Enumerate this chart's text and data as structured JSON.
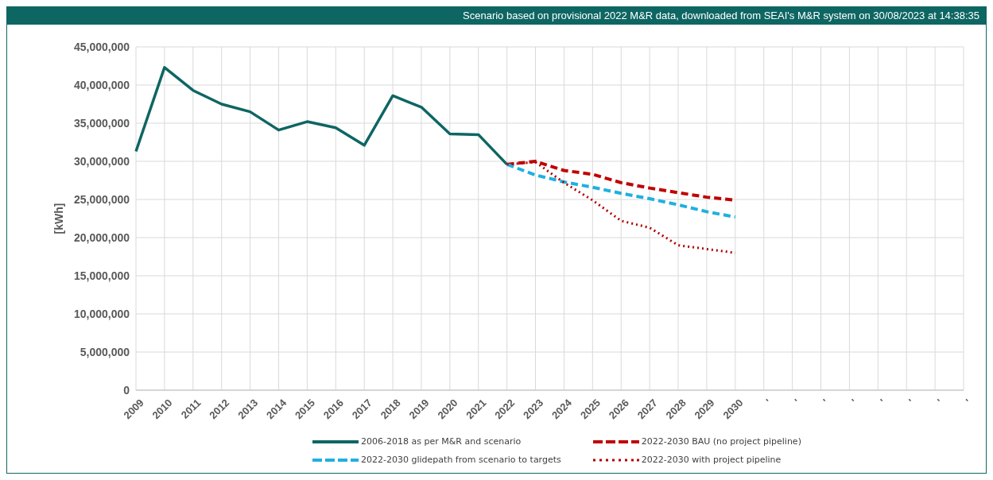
{
  "chart_data": {
    "type": "line",
    "title": "Scenario based on provisional 2022 M&R data, downloaded from SEAI's M&R system on 30/08/2023 at 14:38:35",
    "ylabel": "[kWh]",
    "categories": [
      "2009",
      "2010",
      "2011",
      "2012",
      "2013",
      "2014",
      "2015",
      "2016",
      "2017",
      "2018",
      "2019",
      "2020",
      "2021",
      "2022",
      "2023",
      "2024",
      "2025",
      "2026",
      "2027",
      "2028",
      "2029",
      "2030",
      "'",
      "'",
      "'",
      "'",
      "'",
      "'",
      "'",
      "'"
    ],
    "series": [
      {
        "name": "2006-2018 as per M&R and scenario",
        "color": "#0e6663",
        "line_style": "solid",
        "values": [
          31300000,
          42300000,
          39300000,
          37500000,
          36500000,
          34100000,
          35200000,
          34400000,
          32100000,
          38600000,
          37100000,
          33600000,
          33500000,
          29600000,
          null,
          null,
          null,
          null,
          null,
          null,
          null,
          null,
          null,
          null,
          null,
          null,
          null,
          null,
          null,
          null
        ]
      },
      {
        "name": "2022-2030 BAU (no project pipeline)",
        "color": "#c00000",
        "line_style": "dashed",
        "values": [
          null,
          null,
          null,
          null,
          null,
          null,
          null,
          null,
          null,
          null,
          null,
          null,
          null,
          29600000,
          30000000,
          28800000,
          28300000,
          27200000,
          26500000,
          25900000,
          25300000,
          24900000,
          null,
          null,
          null,
          null,
          null,
          null,
          null,
          null
        ]
      },
      {
        "name": "2022-2030 glidepath from scenario to targets",
        "color": "#1fb0e0",
        "line_style": "dashed",
        "values": [
          null,
          null,
          null,
          null,
          null,
          null,
          null,
          null,
          null,
          null,
          null,
          null,
          null,
          29600000,
          28200000,
          27300000,
          26600000,
          25800000,
          25100000,
          24300000,
          23400000,
          22700000,
          null,
          null,
          null,
          null,
          null,
          null,
          null,
          null
        ]
      },
      {
        "name": "2022-2030 with project pipeline",
        "color": "#b00000",
        "line_style": "dotted",
        "values": [
          null,
          null,
          null,
          null,
          null,
          null,
          null,
          null,
          null,
          null,
          null,
          null,
          null,
          29600000,
          29900000,
          27200000,
          24900000,
          22200000,
          21300000,
          19000000,
          18500000,
          18000000,
          null,
          null,
          null,
          null,
          null,
          null,
          null,
          null
        ]
      }
    ],
    "ylim": [
      0,
      45000000
    ],
    "yticks": [
      0,
      {
        "value": 5000000,
        "label": "5,000,000"
      },
      {
        "value": 10000000,
        "label": "10,000,000"
      },
      {
        "value": 15000000,
        "label": "15,000,000"
      },
      {
        "value": 20000000,
        "label": "20,000,000"
      },
      {
        "value": 25000000,
        "label": "25,000,000"
      },
      {
        "value": 30000000,
        "label": "30,000,000"
      },
      {
        "value": 35000000,
        "label": "35,000,000"
      },
      {
        "value": 40000000,
        "label": "40,000,000"
      },
      {
        "value": 45000000,
        "label": "45,000,000"
      }
    ],
    "grid": true,
    "legend": "bottom",
    "marker": "none"
  }
}
